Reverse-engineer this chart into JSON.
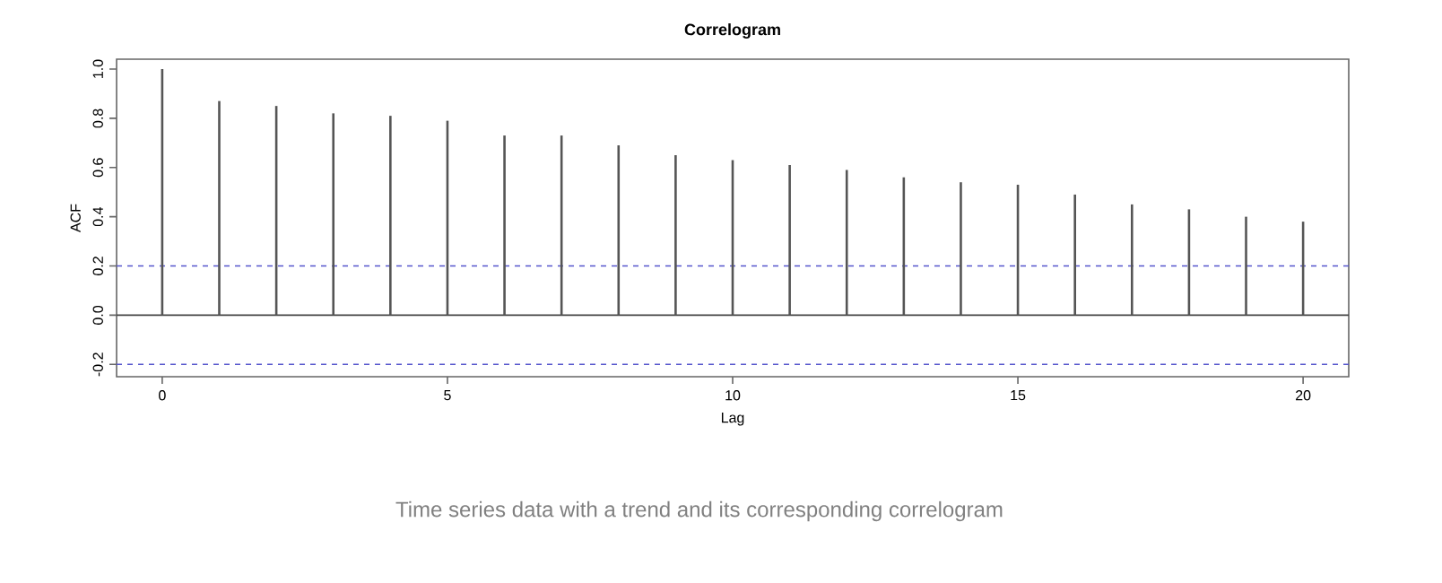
{
  "chart_data": {
    "type": "bar",
    "title": "Correlogram",
    "xlabel": "Lag",
    "ylabel": "ACF",
    "x": [
      0,
      1,
      2,
      3,
      4,
      5,
      6,
      7,
      8,
      9,
      10,
      11,
      12,
      13,
      14,
      15,
      16,
      17,
      18,
      19,
      20
    ],
    "values": [
      1.0,
      0.87,
      0.85,
      0.82,
      0.81,
      0.79,
      0.73,
      0.73,
      0.69,
      0.65,
      0.63,
      0.61,
      0.59,
      0.56,
      0.54,
      0.53,
      0.49,
      0.45,
      0.43,
      0.4,
      0.38
    ],
    "color": "#555555",
    "xlim": [
      -0.8,
      20.8
    ],
    "ylim": [
      -0.25,
      1.04
    ],
    "xticks": [
      0,
      5,
      10,
      15,
      20
    ],
    "yticks": [
      -0.2,
      {
        "value": 0,
        "label": "0.0"
      },
      0.2,
      0.4,
      0.6,
      0.8,
      {
        "value": 1,
        "label": "1.0"
      }
    ],
    "ref_lines": [
      {
        "axis": "y",
        "value": 0.2,
        "color": "#5555cc",
        "line_style": "dashed"
      },
      {
        "axis": "y",
        "value": 0,
        "color": "#444444",
        "line_style": "solid"
      },
      {
        "axis": "y",
        "value": -0.2,
        "color": "#5555cc",
        "line_style": "dashed"
      }
    ],
    "grid": false,
    "annotations": [
      "Time series data with a trend and its corresponding correlogram"
    ]
  }
}
